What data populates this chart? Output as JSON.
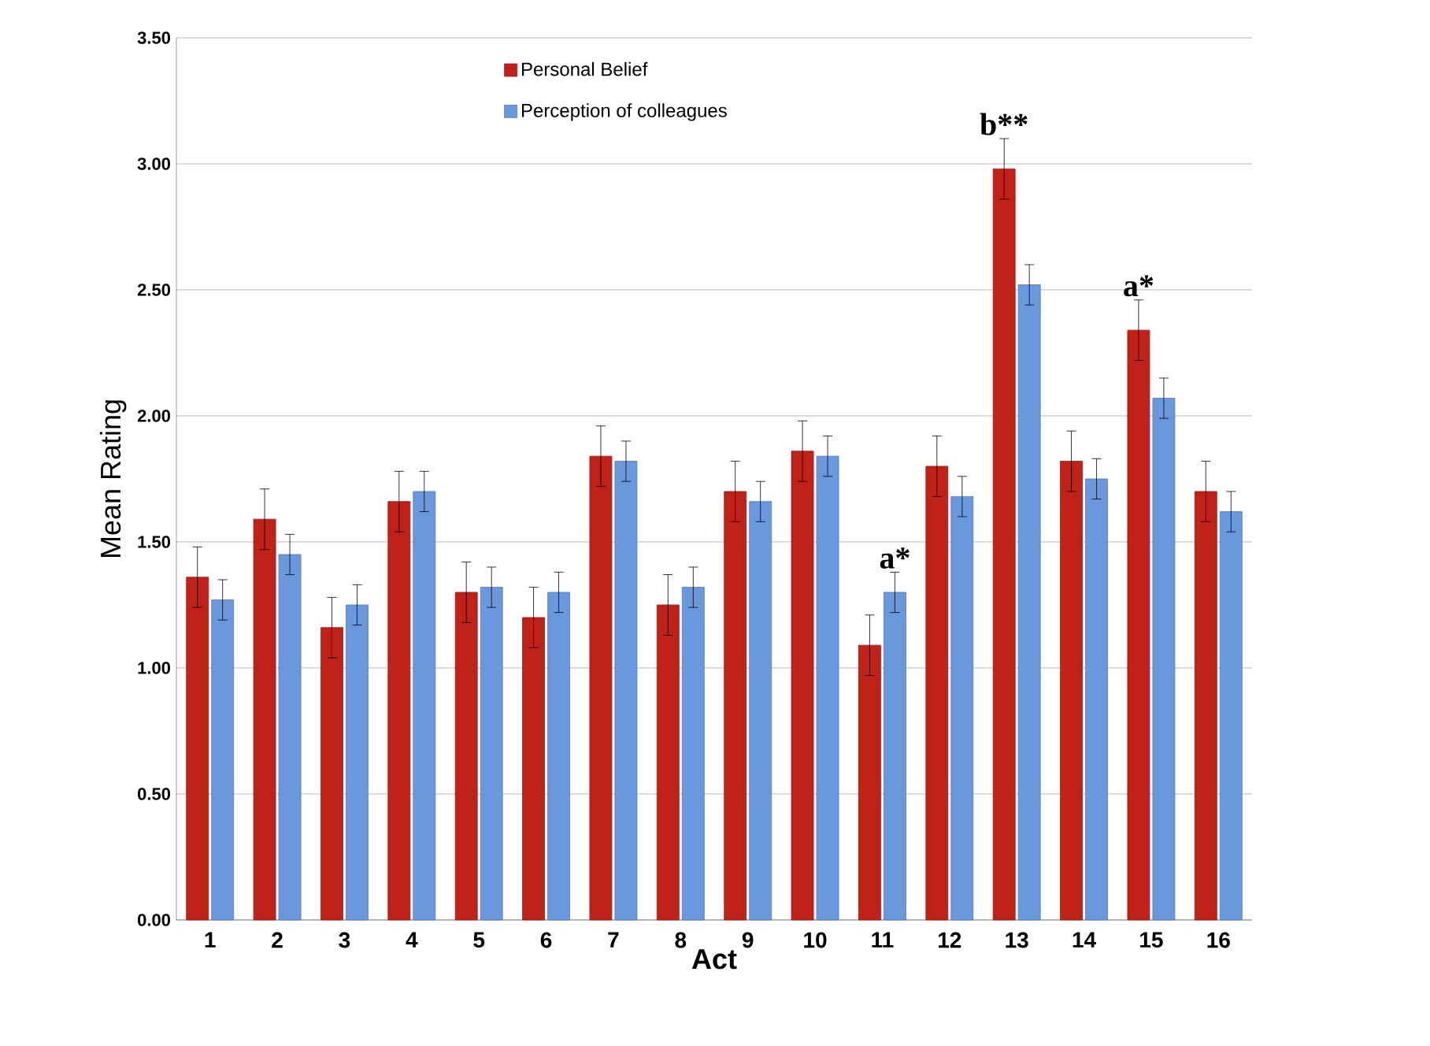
{
  "chart_data": {
    "type": "bar",
    "xlabel": "Act",
    "ylabel": "Mean Rating",
    "categories": [
      "1",
      "2",
      "3",
      "4",
      "5",
      "6",
      "7",
      "8",
      "9",
      "10",
      "11",
      "12",
      "13",
      "14",
      "15",
      "16"
    ],
    "series": [
      {
        "name": "Personal Belief",
        "color": "#c0221a",
        "values": [
          1.36,
          1.59,
          1.16,
          1.66,
          1.3,
          1.2,
          1.84,
          1.25,
          1.7,
          1.86,
          1.09,
          1.8,
          2.98,
          1.82,
          2.34,
          1.7
        ],
        "errors": [
          0.12,
          0.12,
          0.12,
          0.12,
          0.12,
          0.12,
          0.12,
          0.12,
          0.12,
          0.12,
          0.12,
          0.12,
          0.12,
          0.12,
          0.12,
          0.12
        ]
      },
      {
        "name": "Perception of colleagues",
        "color": "#6a98dc",
        "values": [
          1.27,
          1.45,
          1.25,
          1.7,
          1.32,
          1.3,
          1.82,
          1.32,
          1.66,
          1.84,
          1.3,
          1.68,
          2.52,
          1.75,
          2.07,
          1.62
        ],
        "errors": [
          0.08,
          0.08,
          0.08,
          0.08,
          0.08,
          0.08,
          0.08,
          0.08,
          0.08,
          0.08,
          0.08,
          0.08,
          0.08,
          0.08,
          0.08,
          0.08
        ]
      }
    ],
    "ylim": [
      0,
      3.5
    ],
    "yticks": [
      {
        "value": 0,
        "label": "0.00"
      },
      {
        "value": 0.5,
        "label": "0.50"
      },
      {
        "value": 1,
        "label": "1.00"
      },
      {
        "value": 1.5,
        "label": "1.50"
      },
      {
        "value": 2,
        "label": "2.00"
      },
      {
        "value": 2.5,
        "label": "2.50"
      },
      {
        "value": 3,
        "label": "3.00"
      },
      {
        "value": 3.5,
        "label": "3.50"
      }
    ],
    "grid": "y",
    "legend": "top",
    "annotations": [
      {
        "text": "a*",
        "x": "11",
        "y": 1.3
      },
      {
        "text": "b**",
        "x": "13",
        "y": 2.98
      },
      {
        "text": "a*",
        "x": "15",
        "y": 2.34
      }
    ]
  }
}
